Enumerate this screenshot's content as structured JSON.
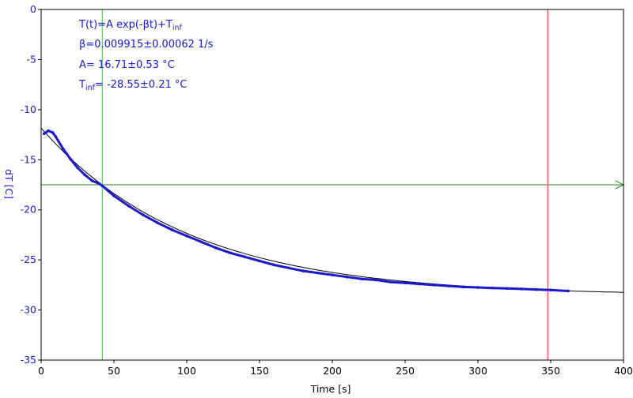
{
  "chart_data": {
    "type": "scatter",
    "title": "",
    "xlabel": "Time [s]",
    "ylabel": "dT [C]",
    "xlim": [
      0,
      400
    ],
    "ylim": [
      -35,
      0
    ],
    "x_ticks": [
      0,
      50,
      100,
      150,
      200,
      250,
      300,
      350,
      400
    ],
    "y_ticks": [
      0,
      -5,
      -10,
      -15,
      -20,
      -25,
      -30,
      -35
    ],
    "grid": false,
    "colors": {
      "data": "#1a1acc",
      "fit": "#000000",
      "cursor_start": "#33cc33",
      "cursor_end": "#cc2222",
      "level_line": "#228822",
      "axis_ticks": "#1a1acc"
    },
    "fit": {
      "model": "exponential",
      "A": 16.71,
      "beta": 0.009915,
      "T_inf": -28.55,
      "x_range": [
        0,
        400
      ]
    },
    "cursors": {
      "x_start": 42,
      "x_end": 348,
      "y_level": -17.5
    },
    "series": [
      {
        "x": [
          2,
          5,
          8,
          10,
          15,
          20,
          25,
          30,
          35,
          40,
          42,
          50,
          60,
          70,
          80,
          90,
          100,
          110,
          120,
          130,
          140,
          150,
          160,
          170,
          180,
          190,
          200,
          210,
          220,
          230,
          240,
          250,
          260,
          270,
          280,
          290,
          300,
          310,
          320,
          330,
          340,
          350,
          362
        ],
        "y": [
          -12.4,
          -12.1,
          -12.3,
          -12.7,
          -13.9,
          -14.9,
          -15.8,
          -16.5,
          -17.1,
          -17.4,
          -17.6,
          -18.6,
          -19.6,
          -20.5,
          -21.3,
          -22.0,
          -22.6,
          -23.2,
          -23.8,
          -24.3,
          -24.7,
          -25.1,
          -25.5,
          -25.8,
          -26.1,
          -26.3,
          -26.5,
          -26.7,
          -26.9,
          -27.0,
          -27.2,
          -27.3,
          -27.4,
          -27.5,
          -27.6,
          -27.7,
          -27.75,
          -27.8,
          -27.85,
          -27.9,
          -27.95,
          -28.0,
          -28.1
        ]
      }
    ],
    "annotations": {
      "formula_main": "T(t)=A exp(-βt)+T",
      "formula_sub": "inf",
      "beta_line": "β=0.009915±0.00062 1/s",
      "a_line": "A= 16.71±0.53 °C",
      "tinf_main": "T",
      "tinf_sub": "inf",
      "tinf_rest": "= -28.55±0.21 °C"
    }
  }
}
